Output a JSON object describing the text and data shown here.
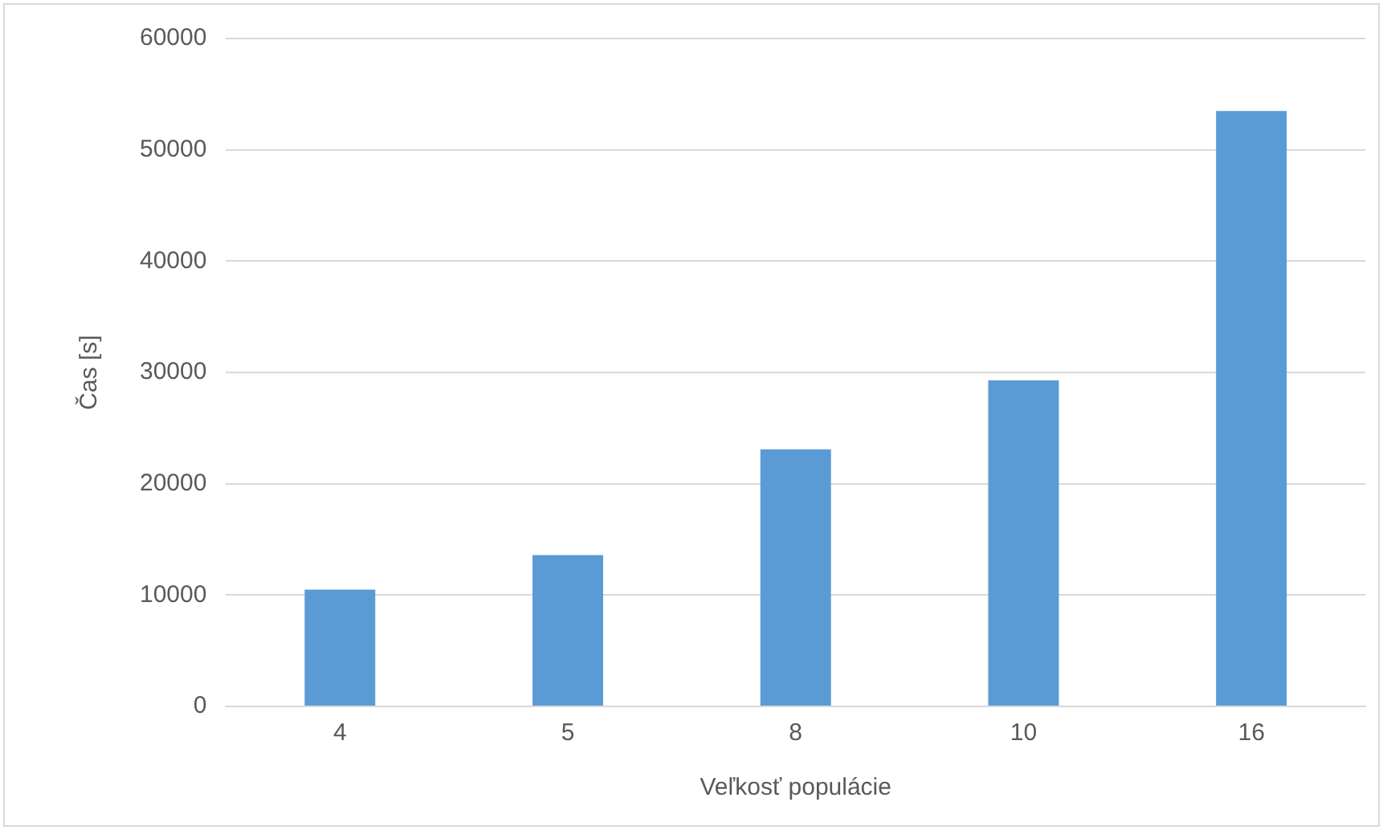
{
  "chart_data": {
    "type": "bar",
    "xlabel": "Veľkosť populácie",
    "ylabel": "Čas [s]",
    "categories": [
      "4",
      "5",
      "8",
      "10",
      "16"
    ],
    "values": [
      10500,
      13600,
      23100,
      29300,
      53500
    ],
    "color": "#5b9bd5",
    "ylim": [
      0,
      60000
    ],
    "yticks": [
      0,
      10000,
      20000,
      30000,
      40000,
      50000,
      60000
    ],
    "grid": "y",
    "legend": false
  }
}
